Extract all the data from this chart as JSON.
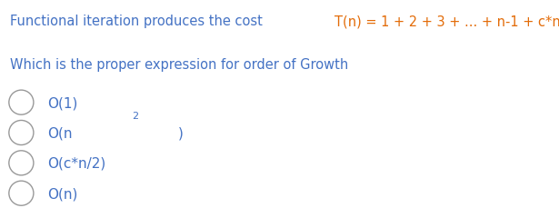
{
  "background_color": "#ffffff",
  "title_part1": "Functional iteration produces the cost ",
  "title_part2": "T(n) = 1 + 2 + 3 + ... + n-1 + c*n",
  "title_color1": "#4472C4",
  "title_color2": "#E36C09",
  "subtitle_text": "Which is the proper expression for order of Growth",
  "subtitle_color": "#4472C4",
  "options": [
    {
      "label": "O(1)",
      "color": "#4472C4"
    },
    {
      "label_parts": [
        "O(n",
        "²",
        ")"
      ],
      "color": "#4472C4"
    },
    {
      "label": "O(c*n/2)",
      "color": "#4472C4"
    },
    {
      "label": "O(n)",
      "color": "#4472C4"
    }
  ],
  "font_size_title": 10.5,
  "font_size_subtitle": 10.5,
  "font_size_options": 11,
  "font_size_super": 8
}
